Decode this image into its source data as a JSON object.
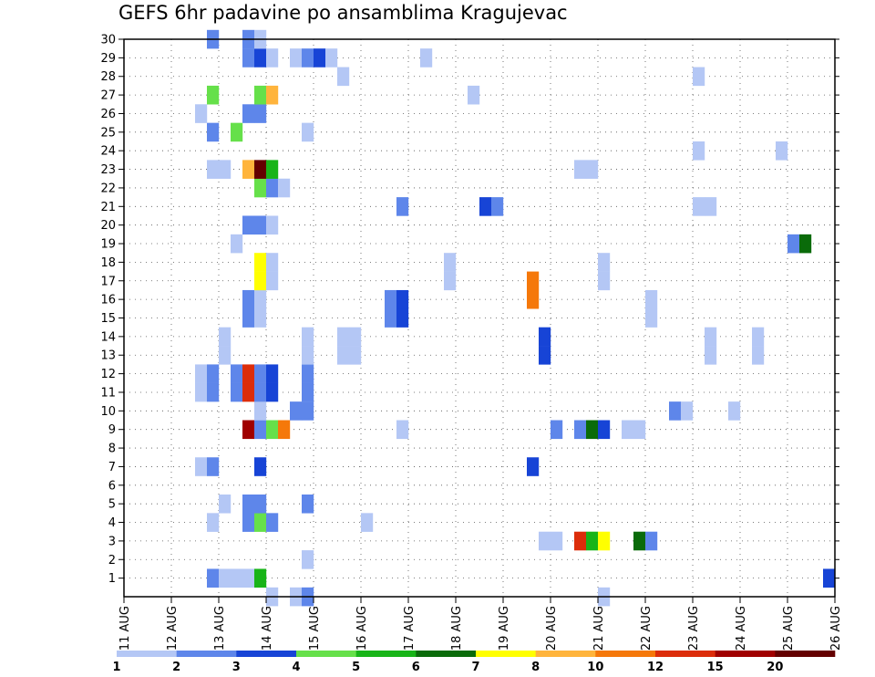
{
  "chart_data": {
    "type": "heatmap",
    "title": "GEFS 6hr padavine po ansamblima Kragujevac",
    "x_tick_labels": [
      "11 AUG",
      "12 AUG",
      "13 AUG",
      "14 AUG",
      "15 AUG",
      "16 AUG",
      "17 AUG",
      "18 AUG",
      "19 AUG",
      "20 AUG",
      "21 AUG",
      "22 AUG",
      "23 AUG",
      "24 AUG",
      "25 AUG",
      "26 AUG"
    ],
    "x_unit": "6-hour steps from 11 AUG 00Z",
    "xlim": [
      0,
      60
    ],
    "y_tick_labels": [
      "1",
      "2",
      "3",
      "4",
      "5",
      "6",
      "7",
      "8",
      "9",
      "10",
      "11",
      "12",
      "13",
      "14",
      "15",
      "16",
      "17",
      "18",
      "19",
      "20",
      "21",
      "22",
      "23",
      "24",
      "25",
      "26",
      "27",
      "28",
      "29",
      "30"
    ],
    "ylim": [
      0,
      30
    ],
    "grid": true,
    "colorbar": {
      "placement": "bottom",
      "tick_labels": [
        "1",
        "2",
        "3",
        "4",
        "5",
        "6",
        "7",
        "8",
        "10",
        "12",
        "15",
        "20"
      ],
      "colors": [
        "#b4c7f5",
        "#5e86ea",
        "#1744d6",
        "#66e04a",
        "#18b418",
        "#0a6b0a",
        "#ffff00",
        "#ffb43c",
        "#f5780a",
        "#dc2d0a",
        "#a00000",
        "#640000"
      ]
    },
    "cells": [
      {
        "m": 1,
        "t": 7,
        "c": 2
      },
      {
        "m": 1,
        "t": 8,
        "c": 1
      },
      {
        "m": 1,
        "t": 9,
        "c": 1
      },
      {
        "m": 1,
        "t": 10,
        "c": 1
      },
      {
        "m": 1,
        "t": 11,
        "c": 5
      },
      {
        "m": 1,
        "t": 59,
        "c": 3
      },
      {
        "m": 0,
        "t": 12,
        "c": 1
      },
      {
        "m": 0,
        "t": 14,
        "c": 1
      },
      {
        "m": 0,
        "t": 15,
        "c": 2
      },
      {
        "m": 0,
        "t": 40,
        "c": 1
      },
      {
        "m": 2,
        "t": 15,
        "c": 1
      },
      {
        "m": 3,
        "t": 35,
        "c": 1
      },
      {
        "m": 3,
        "t": 36,
        "c": 1
      },
      {
        "m": 3,
        "t": 38,
        "c": 10
      },
      {
        "m": 3,
        "t": 39,
        "c": 5
      },
      {
        "m": 3,
        "t": 40,
        "c": 7
      },
      {
        "m": 3,
        "t": 43,
        "c": 6
      },
      {
        "m": 3,
        "t": 44,
        "c": 2
      },
      {
        "m": 4,
        "t": 7,
        "c": 1
      },
      {
        "m": 4,
        "t": 10,
        "c": 2
      },
      {
        "m": 4,
        "t": 11,
        "c": 4
      },
      {
        "m": 4,
        "t": 12,
        "c": 2
      },
      {
        "m": 4,
        "t": 20,
        "c": 1
      },
      {
        "m": 5,
        "t": 8,
        "c": 1
      },
      {
        "m": 5,
        "t": 10,
        "c": 2
      },
      {
        "m": 5,
        "t": 11,
        "c": 2
      },
      {
        "m": 5,
        "t": 15,
        "c": 2
      },
      {
        "m": 7,
        "t": 6,
        "c": 1
      },
      {
        "m": 7,
        "t": 7,
        "c": 2
      },
      {
        "m": 7,
        "t": 11,
        "c": 3
      },
      {
        "m": 7,
        "t": 34,
        "c": 3
      },
      {
        "m": 9,
        "t": 10,
        "c": 11
      },
      {
        "m": 9,
        "t": 11,
        "c": 2
      },
      {
        "m": 9,
        "t": 12,
        "c": 4
      },
      {
        "m": 9,
        "t": 13,
        "c": 9
      },
      {
        "m": 9,
        "t": 23,
        "c": 1
      },
      {
        "m": 9,
        "t": 36,
        "c": 2
      },
      {
        "m": 9,
        "t": 38,
        "c": 2
      },
      {
        "m": 9,
        "t": 39,
        "c": 6
      },
      {
        "m": 9,
        "t": 40,
        "c": 3
      },
      {
        "m": 9,
        "t": 42,
        "c": 1
      },
      {
        "m": 9,
        "t": 43,
        "c": 1
      },
      {
        "m": 10,
        "t": 11,
        "c": 1
      },
      {
        "m": 10,
        "t": 14,
        "c": 2
      },
      {
        "m": 10,
        "t": 15,
        "c": 2
      },
      {
        "m": 10,
        "t": 46,
        "c": 2
      },
      {
        "m": 10,
        "t": 47,
        "c": 1
      },
      {
        "m": 10,
        "t": 51,
        "c": 1
      },
      {
        "m": 11,
        "t": 6,
        "c": 1
      },
      {
        "m": 11,
        "t": 7,
        "c": 2
      },
      {
        "m": 11,
        "t": 9,
        "c": 2
      },
      {
        "m": 11,
        "t": 10,
        "c": 10
      },
      {
        "m": 11,
        "t": 11,
        "c": 2
      },
      {
        "m": 11,
        "t": 12,
        "c": 3
      },
      {
        "m": 11,
        "t": 15,
        "c": 2
      },
      {
        "m": 12,
        "t": 6,
        "c": 1
      },
      {
        "m": 12,
        "t": 7,
        "c": 2
      },
      {
        "m": 12,
        "t": 9,
        "c": 2
      },
      {
        "m": 12,
        "t": 10,
        "c": 10
      },
      {
        "m": 12,
        "t": 11,
        "c": 2
      },
      {
        "m": 12,
        "t": 12,
        "c": 3
      },
      {
        "m": 12,
        "t": 15,
        "c": 2
      },
      {
        "m": 13,
        "t": 8,
        "c": 1
      },
      {
        "m": 13,
        "t": 15,
        "c": 1
      },
      {
        "m": 13,
        "t": 18,
        "c": 1
      },
      {
        "m": 13,
        "t": 19,
        "c": 1
      },
      {
        "m": 13,
        "t": 35,
        "c": 3
      },
      {
        "m": 13,
        "t": 49,
        "c": 1
      },
      {
        "m": 13,
        "t": 53,
        "c": 1
      },
      {
        "m": 14,
        "t": 8,
        "c": 1
      },
      {
        "m": 14,
        "t": 15,
        "c": 1
      },
      {
        "m": 14,
        "t": 18,
        "c": 1
      },
      {
        "m": 14,
        "t": 19,
        "c": 1
      },
      {
        "m": 14,
        "t": 35,
        "c": 3
      },
      {
        "m": 14,
        "t": 49,
        "c": 1
      },
      {
        "m": 14,
        "t": 53,
        "c": 1
      },
      {
        "m": 15,
        "t": 10,
        "c": 2
      },
      {
        "m": 15,
        "t": 11,
        "c": 1
      },
      {
        "m": 15,
        "t": 22,
        "c": 2
      },
      {
        "m": 15,
        "t": 23,
        "c": 3
      },
      {
        "m": 15,
        "t": 44,
        "c": 1
      },
      {
        "m": 16,
        "t": 10,
        "c": 2
      },
      {
        "m": 16,
        "t": 11,
        "c": 1
      },
      {
        "m": 16,
        "t": 22,
        "c": 2
      },
      {
        "m": 16,
        "t": 23,
        "c": 3
      },
      {
        "m": 16,
        "t": 34,
        "c": 9
      },
      {
        "m": 16,
        "t": 44,
        "c": 1
      },
      {
        "m": 17,
        "t": 34,
        "c": 9
      },
      {
        "m": 18,
        "t": 11,
        "c": 7
      },
      {
        "m": 18,
        "t": 12,
        "c": 1
      },
      {
        "m": 18,
        "t": 27,
        "c": 1
      },
      {
        "m": 18,
        "t": 40,
        "c": 1
      },
      {
        "m": 17,
        "t": 11,
        "c": 7
      },
      {
        "m": 17,
        "t": 12,
        "c": 1
      },
      {
        "m": 17,
        "t": 27,
        "c": 1
      },
      {
        "m": 17,
        "t": 40,
        "c": 1
      },
      {
        "m": 19,
        "t": 9,
        "c": 1
      },
      {
        "m": 19,
        "t": 56,
        "c": 2
      },
      {
        "m": 19,
        "t": 57,
        "c": 6
      },
      {
        "m": 20,
        "t": 10,
        "c": 2
      },
      {
        "m": 20,
        "t": 11,
        "c": 2
      },
      {
        "m": 20,
        "t": 12,
        "c": 1
      },
      {
        "m": 21,
        "t": 23,
        "c": 2
      },
      {
        "m": 21,
        "t": 30,
        "c": 3
      },
      {
        "m": 21,
        "t": 31,
        "c": 2
      },
      {
        "m": 21,
        "t": 48,
        "c": 1
      },
      {
        "m": 21,
        "t": 49,
        "c": 1
      },
      {
        "m": 22,
        "t": 11,
        "c": 4
      },
      {
        "m": 22,
        "t": 12,
        "c": 2
      },
      {
        "m": 22,
        "t": 13,
        "c": 1
      },
      {
        "m": 23,
        "t": 7,
        "c": 1
      },
      {
        "m": 23,
        "t": 8,
        "c": 1
      },
      {
        "m": 23,
        "t": 10,
        "c": 8
      },
      {
        "m": 23,
        "t": 11,
        "c": 12
      },
      {
        "m": 23,
        "t": 12,
        "c": 5
      },
      {
        "m": 23,
        "t": 38,
        "c": 1
      },
      {
        "m": 23,
        "t": 39,
        "c": 1
      },
      {
        "m": 24,
        "t": 48,
        "c": 1
      },
      {
        "m": 24,
        "t": 55,
        "c": 1
      },
      {
        "m": 25,
        "t": 7,
        "c": 2
      },
      {
        "m": 25,
        "t": 9,
        "c": 4
      },
      {
        "m": 25,
        "t": 15,
        "c": 1
      },
      {
        "m": 26,
        "t": 6,
        "c": 1
      },
      {
        "m": 26,
        "t": 10,
        "c": 2
      },
      {
        "m": 26,
        "t": 11,
        "c": 2
      },
      {
        "m": 27,
        "t": 7,
        "c": 4
      },
      {
        "m": 27,
        "t": 11,
        "c": 4
      },
      {
        "m": 27,
        "t": 12,
        "c": 8
      },
      {
        "m": 27,
        "t": 29,
        "c": 1
      },
      {
        "m": 28,
        "t": 18,
        "c": 1
      },
      {
        "m": 28,
        "t": 48,
        "c": 1
      },
      {
        "m": 29,
        "t": 10,
        "c": 2
      },
      {
        "m": 29,
        "t": 11,
        "c": 3
      },
      {
        "m": 29,
        "t": 12,
        "c": 1
      },
      {
        "m": 29,
        "t": 14,
        "c": 1
      },
      {
        "m": 29,
        "t": 15,
        "c": 2
      },
      {
        "m": 29,
        "t": 16,
        "c": 3
      },
      {
        "m": 29,
        "t": 17,
        "c": 1
      },
      {
        "m": 29,
        "t": 25,
        "c": 1
      },
      {
        "m": 30,
        "t": 7,
        "c": 2
      },
      {
        "m": 30,
        "t": 10,
        "c": 2
      },
      {
        "m": 30,
        "t": 11,
        "c": 1
      }
    ]
  }
}
